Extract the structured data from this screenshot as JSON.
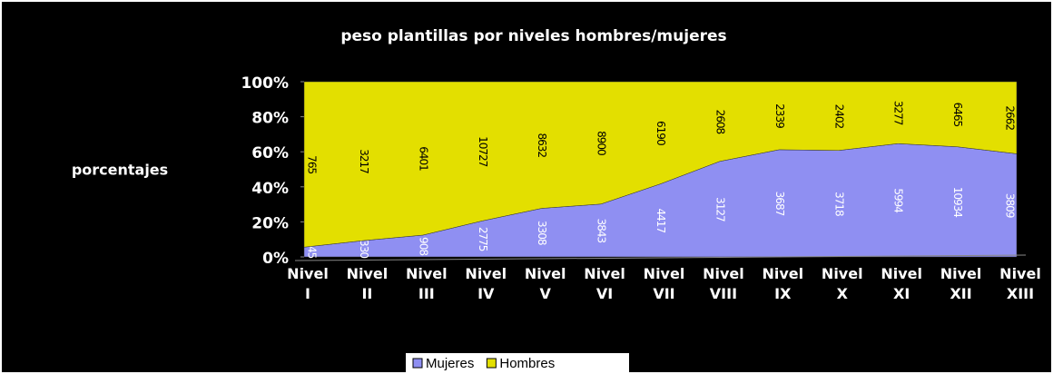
{
  "chart_data": {
    "type": "area",
    "stacking": "percent",
    "title": "peso plantillas por niveles hombres/mujeres",
    "y_label": "porcentajes",
    "categories": [
      "Nivel I",
      "Nivel II",
      "Nivel III",
      "Nivel IV",
      "Nivel V",
      "Nivel VI",
      "Nivel VII",
      "Nivel VIII",
      "Nivel IX",
      "Nivel X",
      "Nivel XI",
      "Nivel XII",
      "Nivel XIII"
    ],
    "series": [
      {
        "name": "Mujeres",
        "color": "#8f8ff2",
        "values": [
          45,
          330,
          908,
          2775,
          3308,
          3843,
          4417,
          3127,
          3687,
          3718,
          5994,
          10934,
          3809
        ]
      },
      {
        "name": "Hombres",
        "color": "#e3df00",
        "values": [
          765,
          3217,
          6401,
          10727,
          8632,
          8900,
          6190,
          2608,
          2339,
          2402,
          3277,
          6465,
          2662
        ]
      }
    ],
    "ylim": [
      0,
      100
    ],
    "yticks": [
      {
        "value": 0,
        "label": "0%"
      },
      {
        "value": 20,
        "label": "20%"
      },
      {
        "value": 40,
        "label": "40%"
      },
      {
        "value": 60,
        "label": "60%"
      },
      {
        "value": 80,
        "label": "80%"
      },
      {
        "value": 100,
        "label": "100%"
      }
    ],
    "legend": "bottom"
  }
}
